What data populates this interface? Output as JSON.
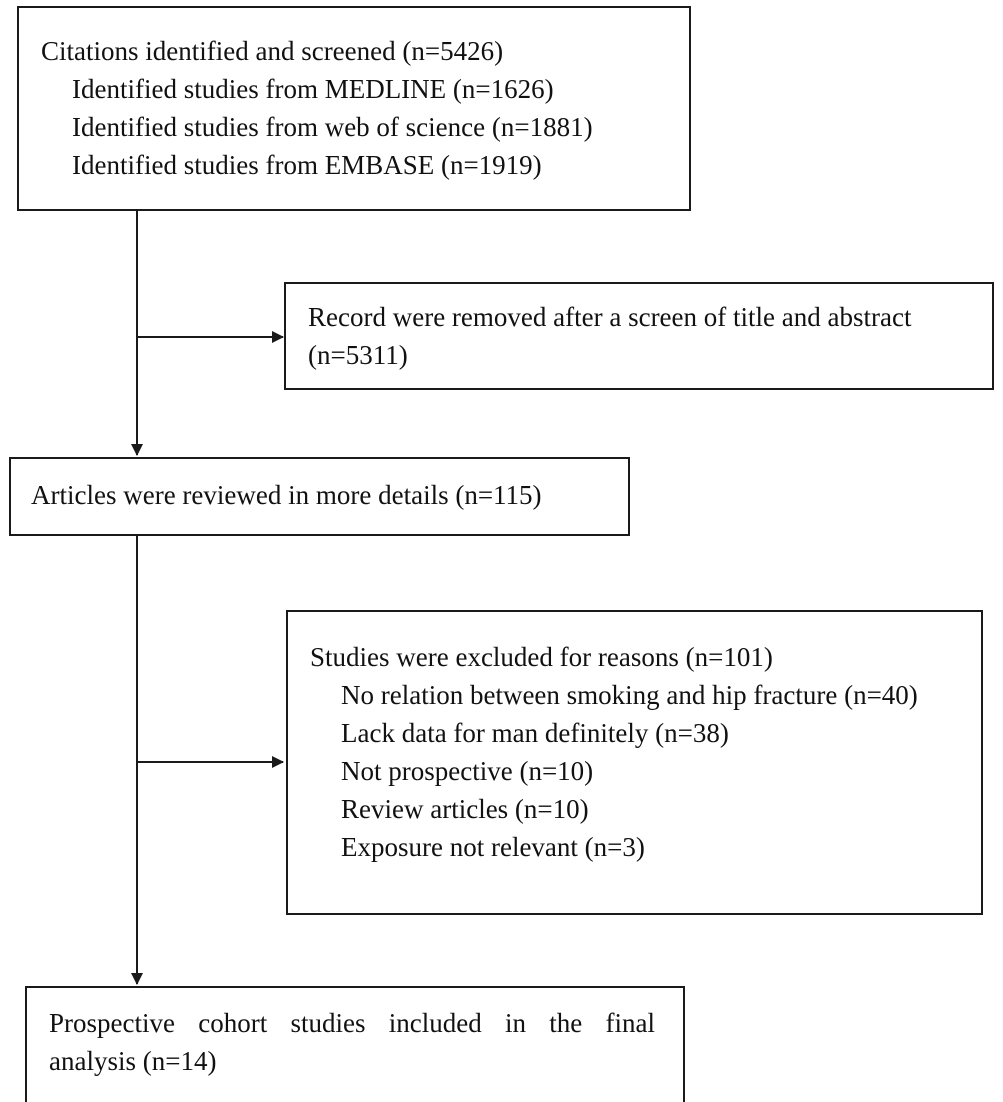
{
  "boxes": {
    "identified": {
      "title": "Citations identified and screened (n=5426)",
      "items": [
        "Identified studies from MEDLINE (n=1626)",
        "Identified studies from web of science (n=1881)",
        "Identified studies from EMBASE (n=1919)"
      ]
    },
    "removed": {
      "line1": "Record were removed after a screen of title and abstract",
      "line2": "(n=5311)"
    },
    "reviewed": {
      "title": "Articles were reviewed in more details (n=115)"
    },
    "excluded": {
      "title": "Studies were excluded for reasons (n=101)",
      "items": [
        "No relation between smoking and hip fracture (n=40)",
        "Lack data for man definitely (n=38)",
        "Not prospective (n=10)",
        "Review articles (n=10)",
        "Exposure not relevant (n=3)"
      ]
    },
    "included": {
      "line1": "Prospective cohort studies included in the final",
      "line2": "analysis (n=14)"
    }
  }
}
